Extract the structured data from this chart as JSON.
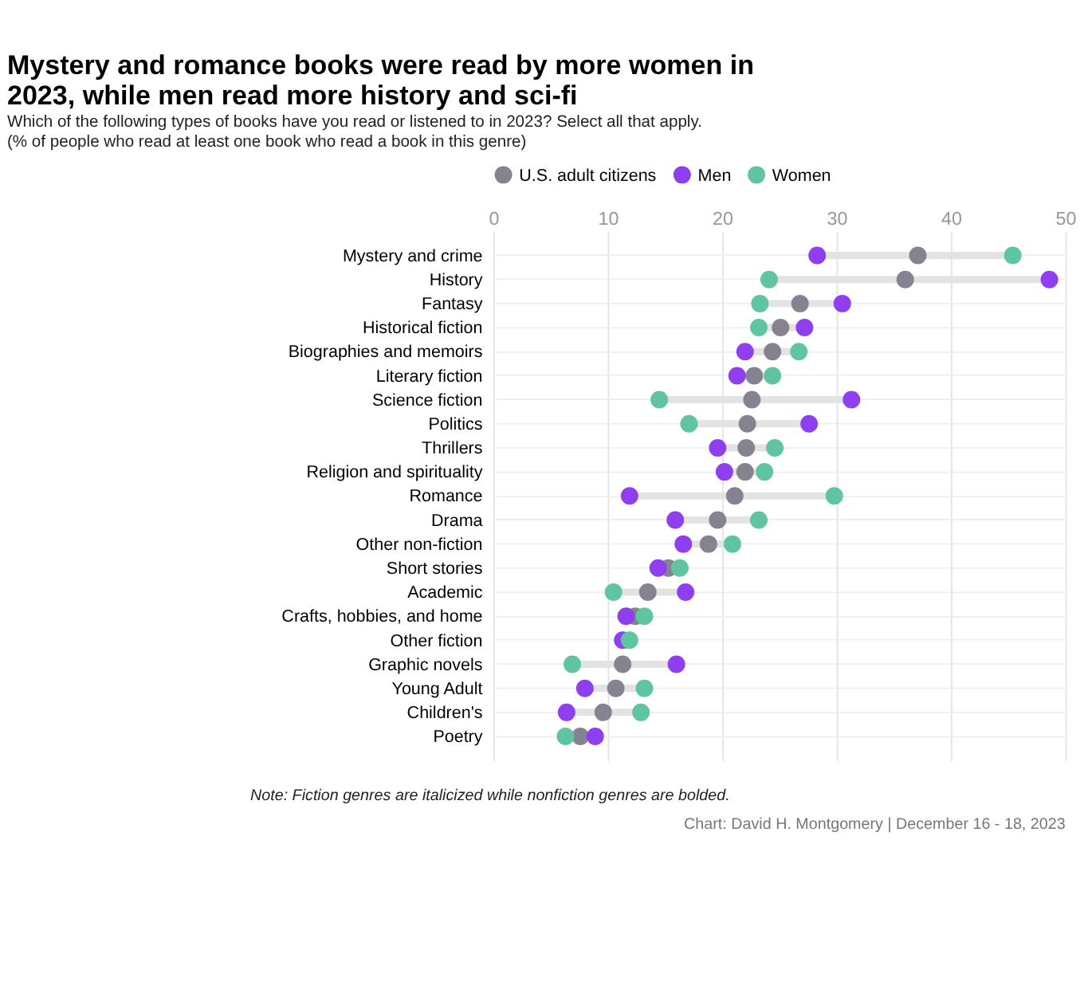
{
  "chart_data": {
    "type": "scatter",
    "title": "Mystery and romance books were read by more women in 2023, while men read more history and sci-fi",
    "subtitle": "Which of the following types of books have you read or listened to in 2023? Select all that apply. (% of people who read at least one book who read a book in this genre)",
    "categories": [
      "Mystery and crime",
      "History",
      "Fantasy",
      "Historical fiction",
      "Biographies and memoirs",
      "Literary fiction",
      "Science fiction",
      "Politics",
      "Thrillers",
      "Religion and spirituality",
      "Romance",
      "Drama",
      "Other non-fiction",
      "Short stories",
      "Academic",
      "Crafts, hobbies, and home",
      "Other fiction",
      "Graphic novels",
      "Young Adult",
      "Children's",
      "Poetry"
    ],
    "series": [
      {
        "name": "U.S. adult citizens",
        "color": "#85838f",
        "values": [
          37.1,
          36.0,
          26.8,
          25.1,
          24.4,
          22.8,
          22.6,
          22.2,
          22.1,
          22.0,
          21.1,
          19.6,
          18.8,
          15.3,
          13.5,
          12.4,
          null,
          11.3,
          10.7,
          9.6,
          7.6
        ]
      },
      {
        "name": "Men",
        "color": "#8f3ff0",
        "values": [
          28.3,
          48.6,
          30.5,
          27.2,
          22.0,
          21.3,
          31.3,
          27.6,
          19.6,
          20.2,
          11.9,
          15.9,
          16.6,
          14.4,
          16.8,
          11.6,
          11.3,
          16.0,
          8.0,
          6.4,
          8.9
        ]
      },
      {
        "name": "Women",
        "color": "#5ec4a1",
        "values": [
          45.4,
          24.1,
          23.3,
          23.2,
          26.7,
          24.4,
          14.5,
          17.1,
          24.6,
          23.7,
          29.8,
          23.2,
          20.9,
          16.3,
          10.5,
          13.2,
          11.9,
          6.9,
          13.2,
          12.9,
          6.3
        ]
      }
    ],
    "orientation": "horizontal",
    "xlim": [
      0,
      50
    ],
    "xticks": [
      0,
      10,
      20,
      30,
      40,
      50
    ],
    "grid": true,
    "legend": "top",
    "marker": "circle",
    "annotations": [
      "Note: Fiction genres are italicized while nonfiction genres are bolded.",
      "Chart: David H. Montgomery | December 16 - 18, 2023"
    ]
  }
}
